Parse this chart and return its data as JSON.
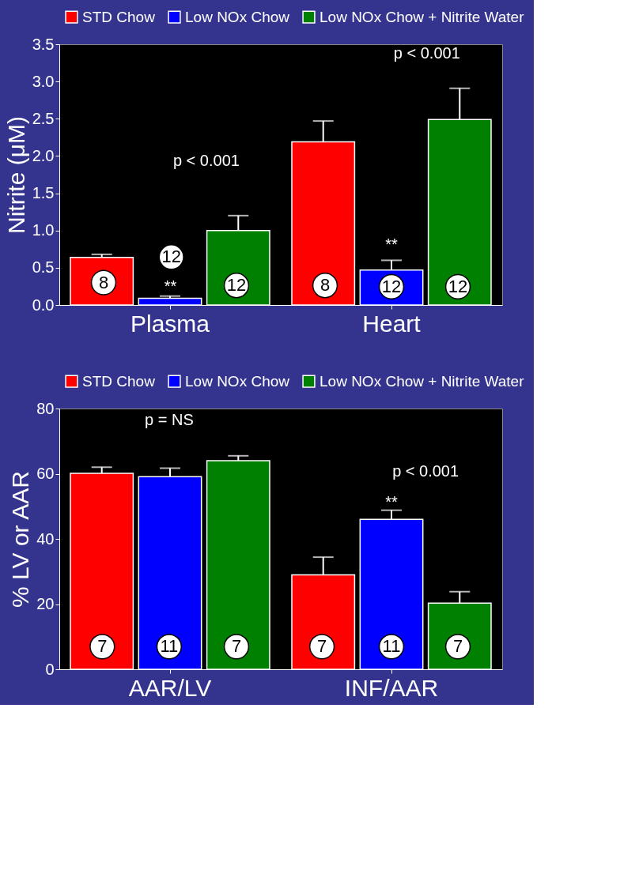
{
  "chart_data": [
    {
      "type": "bar",
      "categories": [
        "Plasma",
        "Heart"
      ],
      "ylabel": "Nitrite (μM)",
      "ylim": [
        0,
        3.5
      ],
      "yticks": [
        {
          "value": 0,
          "label": "0.0"
        },
        {
          "value": 0.5,
          "label": "0.5"
        },
        {
          "value": 1,
          "label": "1.0"
        },
        {
          "value": 1.5,
          "label": "1.5"
        },
        {
          "value": 2,
          "label": "2.0"
        },
        {
          "value": 2.5,
          "label": "2.5"
        },
        {
          "value": 3,
          "label": "3.0"
        },
        {
          "value": 3.5,
          "label": "3.5"
        }
      ],
      "legend": "top",
      "grid": false,
      "series": [
        {
          "name": "STD Chow",
          "color": "#ff0000",
          "values": [
            0.64,
            2.19
          ],
          "errors": [
            [
              0.64,
              0.68
            ],
            [
              2.19,
              2.47
            ]
          ]
        },
        {
          "name": "Low NOx Chow",
          "color": "#0000ff",
          "values": [
            0.09,
            0.47
          ],
          "errors": [
            [
              0.09,
              0.12
            ],
            [
              0.47,
              0.6
            ]
          ]
        },
        {
          "name": "Low NOx Chow + Nitrite Water",
          "color": "#008000",
          "values": [
            1.0,
            2.49
          ],
          "errors": [
            [
              1.0,
              1.2
            ],
            [
              2.49,
              2.91
            ]
          ]
        }
      ],
      "annotations": [
        "8",
        "12",
        "12",
        "8",
        "12",
        "12",
        "p < 0.001",
        "**",
        "p < 0.001",
        "**"
      ]
    },
    {
      "type": "bar",
      "categories": [
        "AAR/LV",
        "INF/AAR"
      ],
      "ylabel": "% LV or AAR",
      "ylim": [
        0,
        80
      ],
      "yticks": [
        0,
        20,
        40,
        60,
        80
      ],
      "legend": "top",
      "grid": false,
      "series": [
        {
          "name": "STD Chow",
          "color": "#ff0000",
          "values": [
            60.1,
            29
          ],
          "errors": [
            [
              60.1,
              62
            ],
            [
              29,
              34.4
            ]
          ]
        },
        {
          "name": "Low NOx Chow",
          "color": "#0000ff",
          "values": [
            59.1,
            46
          ],
          "errors": [
            [
              59.1,
              61.7
            ],
            [
              46,
              48.8
            ]
          ]
        },
        {
          "name": "Low NOx Chow + Nitrite Water",
          "color": "#008000",
          "values": [
            64,
            20.3
          ],
          "errors": [
            [
              64,
              65.5
            ],
            [
              20.3,
              23.8
            ]
          ]
        }
      ],
      "annotations": [
        "7",
        "11",
        "7",
        "7",
        "11",
        "7",
        "p = NS",
        "p < 0.001",
        "**"
      ]
    }
  ]
}
